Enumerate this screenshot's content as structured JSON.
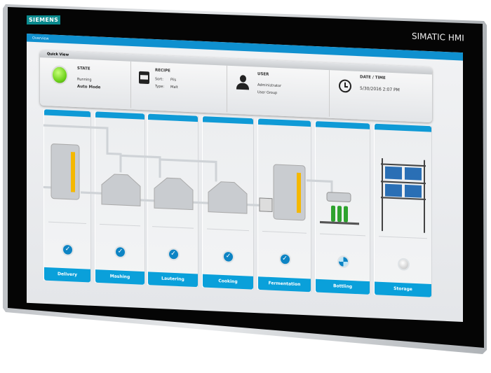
{
  "device": {
    "brand": "SIEMENS",
    "model": "SIMATIC HMI"
  },
  "screen": {
    "title": "Overview"
  },
  "quick_view": {
    "title": "Quick View",
    "state": {
      "label": "STATE",
      "status": "Running",
      "mode": "Auto Mode",
      "indicator_color": "#6fd21c"
    },
    "recipe": {
      "label": "RECIPE",
      "sort_label": "Sort:",
      "sort_value": "Pils",
      "type_label": "Type:",
      "type_value": "Malt"
    },
    "user": {
      "label": "USER",
      "name": "Administrator",
      "group": "User Group"
    },
    "datetime": {
      "label": "DATE / TIME",
      "value": "5/30/2016 2:07 PM"
    }
  },
  "stages": [
    {
      "label": "Delivery",
      "status": "done"
    },
    {
      "label": "Mashing",
      "status": "done"
    },
    {
      "label": "Lautering",
      "status": "done"
    },
    {
      "label": "Cooking",
      "status": "done"
    },
    {
      "label": "Fermentation",
      "status": "done"
    },
    {
      "label": "Bottling",
      "status": "in-progress"
    },
    {
      "label": "Storage",
      "status": "idle"
    }
  ],
  "colors": {
    "accent": "#0aa0da",
    "tank_fill": "#f5b800",
    "bottle": "#2ea32e"
  }
}
